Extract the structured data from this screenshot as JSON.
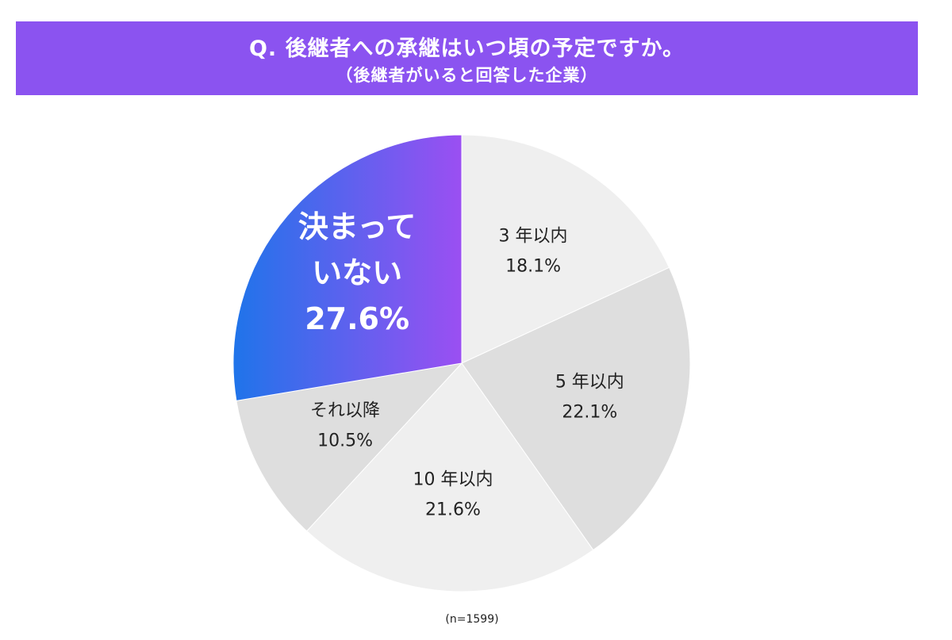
{
  "header": {
    "title": "Q. 後継者への承継はいつ頃の予定ですか。",
    "subtitle": "（後継者がいると回答した企業）"
  },
  "note": "(n=1599)",
  "colors": {
    "header_bg": "#8b53f0",
    "highlight_gradient": [
      "#1f74ea",
      "#9b4ff2"
    ],
    "slice_light": "#efefef",
    "slice_mid": "#dedede",
    "label_dark": "#222222",
    "label_light": "#ffffff"
  },
  "chart_data": {
    "type": "pie",
    "start": "12 o'clock, clockwise",
    "slices": [
      {
        "label": "3 年以内",
        "value": 18.1,
        "value_label": "18.1%",
        "color": "#efefef",
        "highlight": false
      },
      {
        "label": "5 年以内",
        "value": 22.1,
        "value_label": "22.1%",
        "color": "#dedede",
        "highlight": false
      },
      {
        "label": "10 年以内",
        "value": 21.6,
        "value_label": "21.6%",
        "color": "#efefef",
        "highlight": false
      },
      {
        "label": "それ以降",
        "value": 10.5,
        "value_label": "10.5%",
        "color": "#dedede",
        "highlight": false
      },
      {
        "label": "決まって\nいない",
        "value": 27.6,
        "value_label": "27.6%",
        "color": "gradient",
        "highlight": true
      }
    ]
  }
}
